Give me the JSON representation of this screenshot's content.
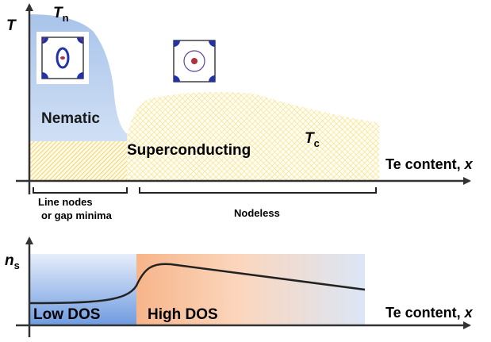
{
  "top_panel": {
    "y_axis_label": "T",
    "nematic_temperature": {
      "symbol": "T",
      "subscript": "n"
    },
    "nematic_label": "Nematic",
    "superconducting_label": "Superconducting",
    "tc_label": {
      "symbol": "T",
      "subscript": "c"
    },
    "x_axis_label": {
      "text": "Te content, ",
      "variable": "x"
    },
    "regions": [
      {
        "lines": [
          "Line nodes",
          "or gap minima"
        ]
      },
      {
        "lines": [
          "Nodeless"
        ]
      }
    ]
  },
  "bottom_panel": {
    "y_axis_label": {
      "symbol": "n",
      "subscript": "s"
    },
    "low_dos_label": "Low DOS",
    "high_dos_label": "High DOS",
    "x_axis_label": {
      "text": "Te content, ",
      "variable": "x"
    }
  }
}
